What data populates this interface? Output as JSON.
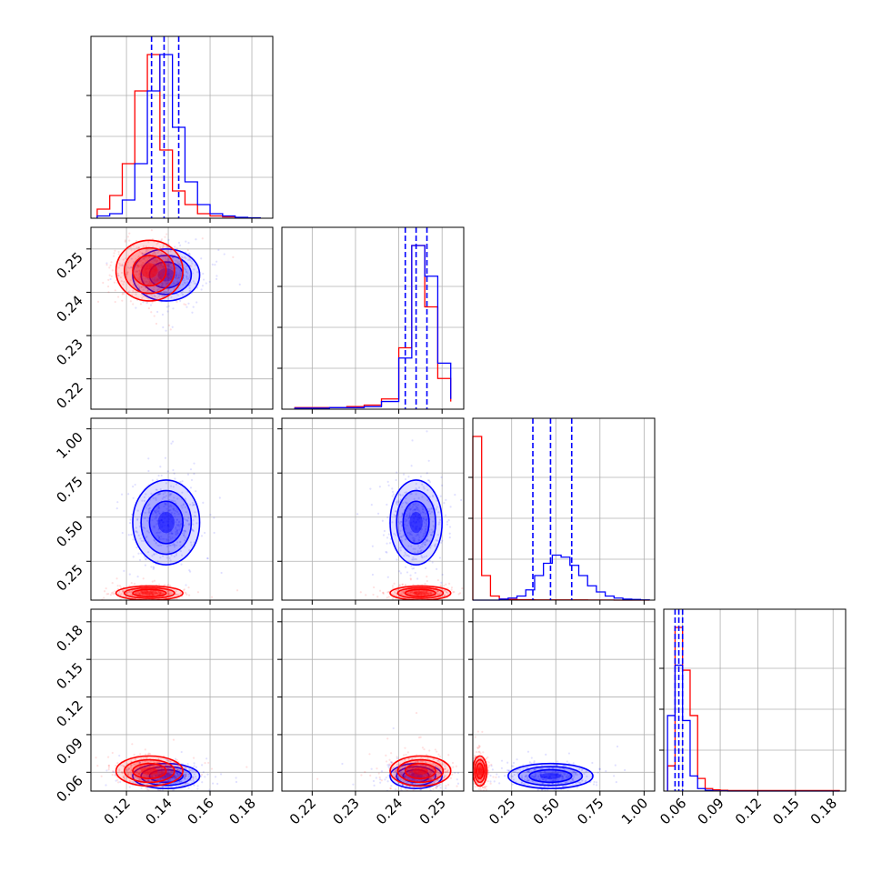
{
  "figure": {
    "colors": {
      "series_a": "#ff0000",
      "series_b": "#0000ff",
      "grid": "#b0b0b0",
      "frame": "#000000"
    }
  },
  "chart_data": {
    "type": "corner",
    "grid": true,
    "parameters": [
      {
        "ticks": [
          0.12,
          0.14,
          0.16,
          0.18
        ],
        "tick_labels": [
          "0.12",
          "0.14",
          "0.16",
          "0.18"
        ],
        "range": [
          0.103,
          0.19
        ]
      },
      {
        "ticks": [
          0.22,
          0.23,
          0.24,
          0.25
        ],
        "tick_labels": [
          "0.22",
          "0.23",
          "0.24",
          "0.25"
        ],
        "range": [
          0.213,
          0.255
        ]
      },
      {
        "ticks": [
          0.25,
          0.5,
          0.75,
          1.0
        ],
        "tick_labels": [
          "0.25",
          "0.50",
          "0.75",
          "1.00"
        ],
        "range": [
          0.03,
          1.06
        ]
      },
      {
        "ticks": [
          0.06,
          0.09,
          0.12,
          0.15,
          0.18
        ],
        "tick_labels": [
          "0.06",
          "0.09",
          "0.12",
          "0.15",
          "0.18"
        ],
        "range": [
          0.045,
          0.19
        ]
      }
    ],
    "series": [
      {
        "color": "#ff0000",
        "marginals": [
          {
            "bins": [
              0.106,
              0.112,
              0.118,
              0.124,
              0.13,
              0.136,
              0.142,
              0.148,
              0.154,
              0.16,
              0.166,
              0.172,
              0.178,
              0.184
            ],
            "counts": [
              2,
              5,
              12,
              28,
              36,
              15,
              6,
              3,
              1,
              0.5,
              0.3,
              0.1,
              0.05,
              0.02
            ]
          },
          {
            "bins": [
              0.216,
              0.22,
              0.224,
              0.228,
              0.232,
              0.236,
              0.24,
              0.243,
              0.246,
              0.249,
              0.252
            ],
            "counts": [
              0.3,
              0.3,
              0.3,
              0.5,
              0.8,
              2,
              12,
              32,
              20,
              6,
              1.5
            ]
          },
          {
            "bins": [
              0.03,
              0.08,
              0.13,
              0.18,
              0.23,
              0.28,
              0.33,
              0.38,
              0.43,
              0.48,
              0.53,
              0.58,
              0.63,
              0.68,
              0.73,
              0.78,
              0.83,
              0.88,
              0.93,
              0.98,
              1.03
            ],
            "counts": [
              80,
              12,
              2,
              0.5,
              0.3,
              0.2,
              0.2,
              0.1,
              0.1,
              0.1,
              0.1,
              0.1,
              0.1,
              0.05,
              0.05,
              0.05,
              0,
              0,
              0,
              0,
              0
            ]
          },
          {
            "bins": [
              0.048,
              0.054,
              0.06,
              0.066,
              0.072,
              0.078,
              0.084,
              0.09,
              0.096,
              0.11,
              0.13,
              0.15,
              0.17,
              0.185
            ],
            "counts": [
              10,
              65,
              48,
              30,
              5,
              1,
              0.5,
              0.3,
              0.2,
              0.2,
              0.2,
              0.2,
              0.2
            ]
          }
        ],
        "medians": [
          0.132,
          0.2445,
          0.07,
          0.061
        ],
        "centers": {
          "p1": 0.131,
          "p2": 0.245,
          "p3": 0.07,
          "p4": 0.061
        },
        "spreads": {
          "p1": 0.008,
          "p2": 0.0035,
          "p3": 0.02,
          "p4": 0.006
        }
      },
      {
        "color": "#0000ff",
        "marginals": [
          {
            "bins": [
              0.106,
              0.112,
              0.118,
              0.124,
              0.13,
              0.136,
              0.142,
              0.148,
              0.154,
              0.16,
              0.166,
              0.172,
              0.178,
              0.184
            ],
            "counts": [
              0.5,
              1,
              4,
              12,
              28,
              36,
              20,
              8,
              3,
              1,
              0.5,
              0.2,
              0.1,
              0.05
            ]
          },
          {
            "bins": [
              0.216,
              0.22,
              0.224,
              0.228,
              0.232,
              0.236,
              0.24,
              0.243,
              0.246,
              0.249,
              0.252
            ],
            "counts": [
              0.2,
              0.2,
              0.3,
              0.3,
              0.5,
              1.5,
              10,
              32,
              26,
              9,
              2
            ]
          },
          {
            "bins": [
              0.03,
              0.08,
              0.13,
              0.18,
              0.23,
              0.28,
              0.33,
              0.38,
              0.43,
              0.48,
              0.53,
              0.58,
              0.63,
              0.68,
              0.73,
              0.78,
              0.83,
              0.88,
              0.93,
              0.98,
              1.03
            ],
            "counts": [
              0,
              0,
              0,
              0.5,
              1,
              2,
              5,
              12,
              18,
              22,
              21,
              17,
              12,
              7,
              4,
              2,
              1,
              0.5,
              0.3,
              0.1,
              0
            ]
          },
          {
            "bins": [
              0.048,
              0.054,
              0.06,
              0.066,
              0.072,
              0.078,
              0.084,
              0.09,
              0.096,
              0.11,
              0.13,
              0.15,
              0.17,
              0.185
            ],
            "counts": [
              30,
              50,
              28,
              6,
              1,
              0.3,
              0.1,
              0.1,
              0,
              0,
              0,
              0,
              0
            ]
          }
        ],
        "quantiles_16_50_84": [
          [
            0.132,
            0.138,
            0.145
          ],
          [
            0.2415,
            0.244,
            0.2465
          ],
          [
            0.37,
            0.47,
            0.59
          ],
          [
            0.054,
            0.057,
            0.06
          ]
        ],
        "centers": {
          "p1": 0.139,
          "p2": 0.244,
          "p3": 0.47,
          "p4": 0.057
        },
        "spreads": {
          "p1": 0.008,
          "p2": 0.003,
          "p3": 0.12,
          "p4": 0.005
        }
      }
    ]
  }
}
